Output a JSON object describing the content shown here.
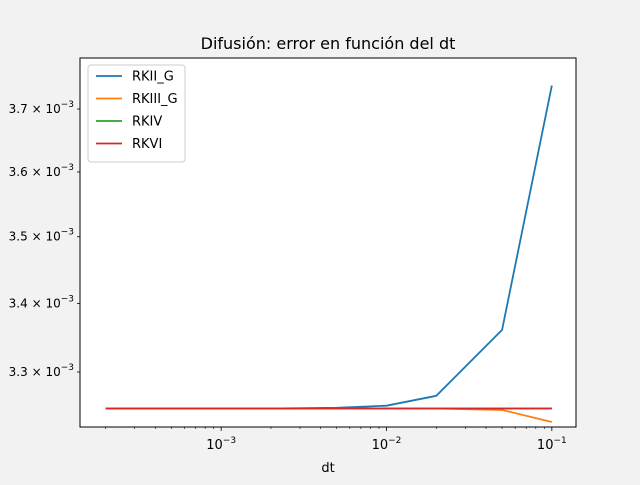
{
  "chart_data": {
    "type": "line",
    "title": "Difusión: error en función del dt",
    "xlabel": "dt",
    "ylabel": "",
    "xscale": "log",
    "yscale": "log",
    "xlim": [
      0.00014,
      0.14
    ],
    "ylim": [
      0.003222,
      0.003783
    ],
    "grid": false,
    "legend_position": "top-left",
    "x": [
      0.0002,
      0.0005,
      0.001,
      0.002,
      0.005,
      0.01,
      0.02,
      0.05,
      0.1
    ],
    "x_ticks": [
      {
        "value": 0.001,
        "mantissa": "10",
        "exponent": "−3"
      },
      {
        "value": 0.01,
        "mantissa": "10",
        "exponent": "−2"
      },
      {
        "value": 0.1,
        "mantissa": "10",
        "exponent": "−1"
      }
    ],
    "y_ticks": [
      {
        "value": 0.0033,
        "mantissa": "3.3 × 10",
        "exponent": "−3"
      },
      {
        "value": 0.0034,
        "mantissa": "3.4 × 10",
        "exponent": "−3"
      },
      {
        "value": 0.0035,
        "mantissa": "3.5 × 10",
        "exponent": "−3"
      },
      {
        "value": 0.0036,
        "mantissa": "3.6 × 10",
        "exponent": "−3"
      },
      {
        "value": 0.0037,
        "mantissa": "3.7 × 10",
        "exponent": "−3"
      }
    ],
    "series": [
      {
        "name": "RKII_G",
        "color": "#1f77b4",
        "values": [
          0.003248,
          0.003248,
          0.003248,
          0.003248,
          0.003249,
          0.003252,
          0.003266,
          0.003361,
          0.003738
        ]
      },
      {
        "name": "RKIII_G",
        "color": "#ff7f0e",
        "values": [
          0.003248,
          0.003248,
          0.003248,
          0.003248,
          0.003248,
          0.003248,
          0.003248,
          0.003246,
          0.003229
        ]
      },
      {
        "name": "RKIV",
        "color": "#2ca02c",
        "values": [
          0.003248,
          0.003248,
          0.003248,
          0.003248,
          0.003248,
          0.003248,
          0.003248,
          0.003248,
          0.003248
        ]
      },
      {
        "name": "RKVI",
        "color": "#d62728",
        "values": [
          0.003248,
          0.003248,
          0.003248,
          0.003248,
          0.003248,
          0.003248,
          0.003248,
          0.003248,
          0.003248
        ]
      }
    ]
  }
}
